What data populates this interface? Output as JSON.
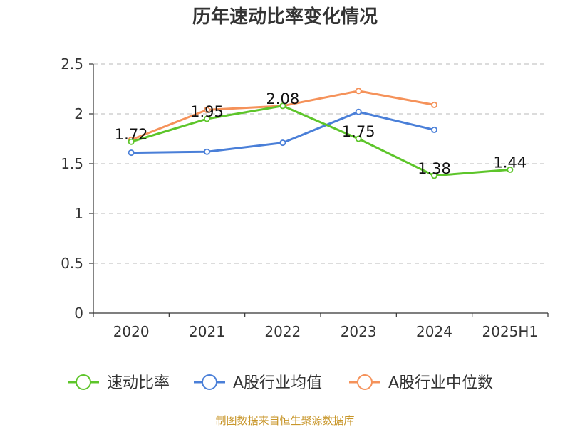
{
  "chart_data": {
    "type": "line",
    "title": "历年速动比率变化情况",
    "categories": [
      "2020",
      "2021",
      "2022",
      "2023",
      "2024",
      "2025H1"
    ],
    "ylim": [
      0,
      2.5
    ],
    "yticks": [
      "0",
      "0.5",
      "1",
      "1.5",
      "2",
      "2.5"
    ],
    "grid": true,
    "legend_position": "bottom",
    "series": [
      {
        "name": "速动比率",
        "color": "#5dc52a",
        "values": [
          1.72,
          1.95,
          2.08,
          1.75,
          1.38,
          1.44
        ],
        "show_labels": true
      },
      {
        "name": "A股行业均值",
        "color": "#4a7fd8",
        "values": [
          1.61,
          1.62,
          1.71,
          2.02,
          1.84,
          null
        ],
        "show_labels": false
      },
      {
        "name": "A股行业中位数",
        "color": "#f5925a",
        "values": [
          1.74,
          2.04,
          2.08,
          2.23,
          2.09,
          null
        ],
        "show_labels": false
      }
    ]
  },
  "source": "制图数据来自恒生聚源数据库"
}
